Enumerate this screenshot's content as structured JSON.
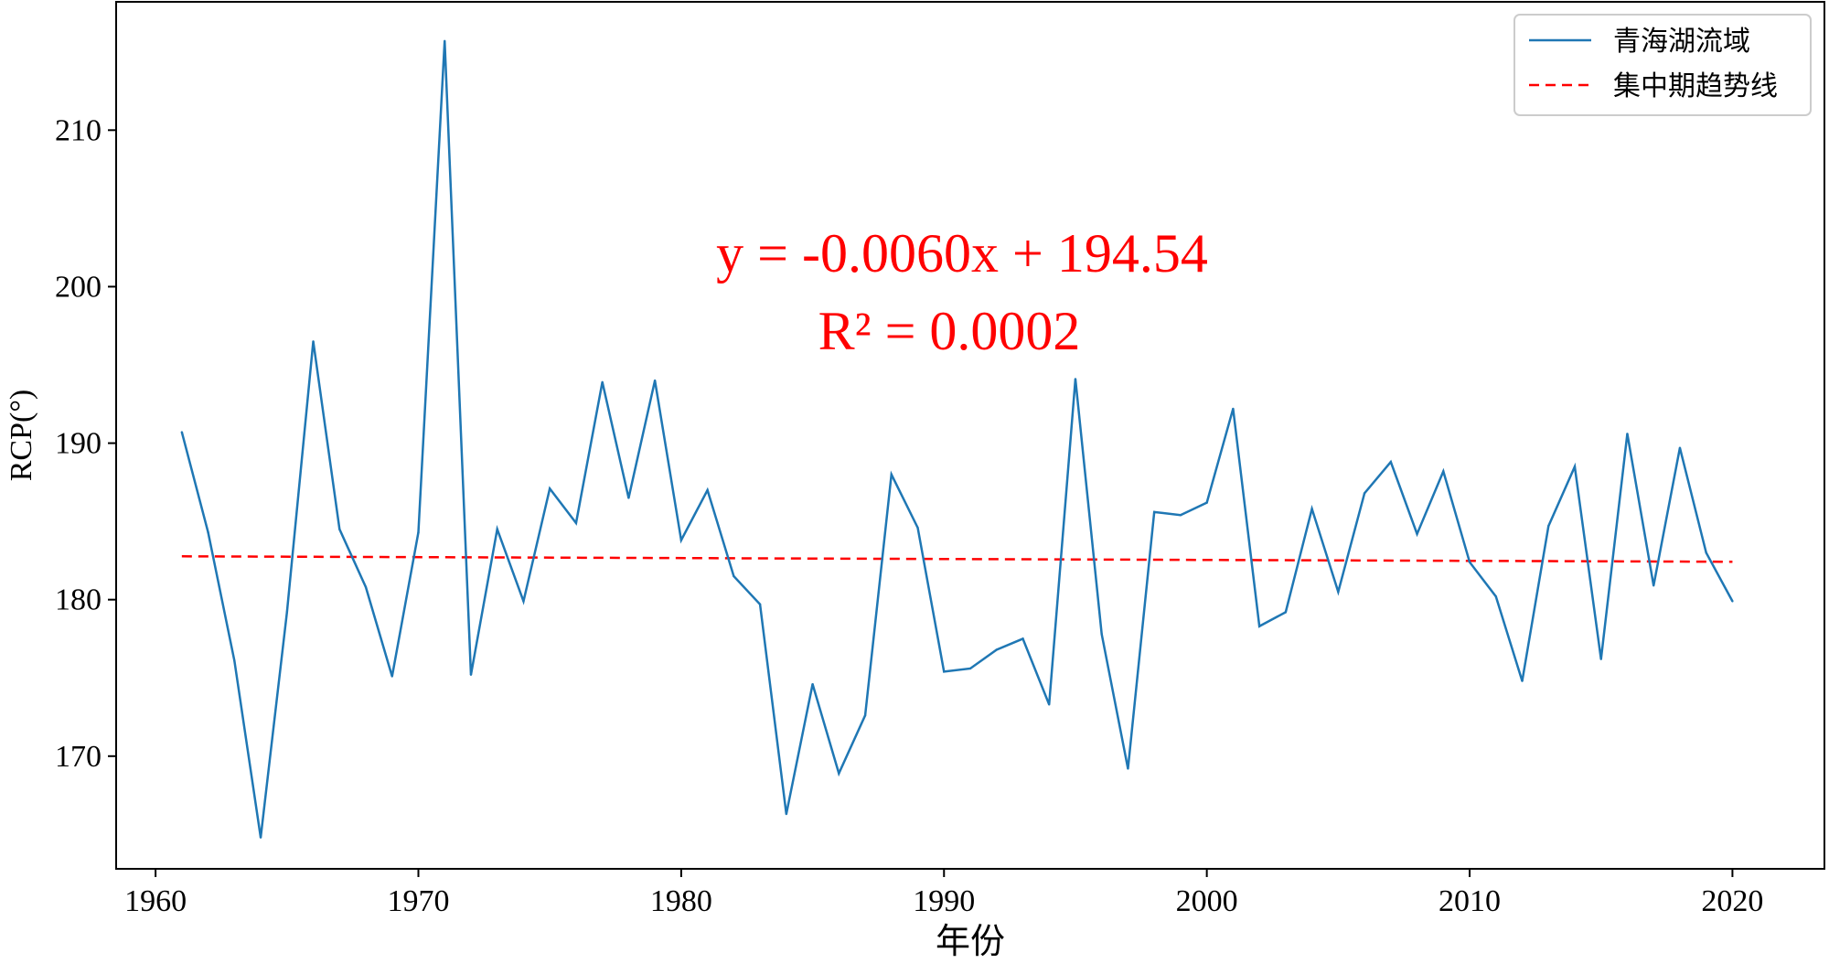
{
  "chart_data": {
    "type": "line",
    "xlabel": "年份",
    "ylabel": "RCP(°)",
    "xlim": [
      1958.5,
      2023.5
    ],
    "ylim": [
      162.8,
      218.2
    ],
    "xticks": [
      1960,
      1970,
      1980,
      1990,
      2000,
      2010,
      2020
    ],
    "yticks": [
      170,
      180,
      190,
      200,
      210
    ],
    "grid": false,
    "legend_position": "top-right",
    "series": [
      {
        "name": "青海湖流域",
        "color": "#1f77b4",
        "style": "solid",
        "x": [
          1961,
          1962,
          1963,
          1964,
          1965,
          1966,
          1967,
          1968,
          1969,
          1970,
          1971,
          1972,
          1973,
          1974,
          1975,
          1976,
          1977,
          1978,
          1979,
          1980,
          1981,
          1982,
          1983,
          1984,
          1985,
          1986,
          1987,
          1988,
          1989,
          1990,
          1991,
          1992,
          1993,
          1994,
          1995,
          1996,
          1997,
          1998,
          1999,
          2000,
          2001,
          2002,
          2003,
          2004,
          2005,
          2006,
          2007,
          2008,
          2009,
          2010,
          2011,
          2012,
          2013,
          2014,
          2015,
          2016,
          2017,
          2018,
          2019,
          2020
        ],
        "y": [
          190.7,
          184.3,
          176.1,
          164.8,
          179.2,
          196.5,
          184.5,
          180.8,
          175.1,
          184.3,
          215.7,
          175.2,
          184.5,
          179.9,
          187.1,
          184.9,
          193.9,
          186.5,
          194.0,
          183.8,
          187.0,
          181.5,
          179.7,
          166.3,
          174.6,
          168.9,
          172.6,
          188.0,
          184.6,
          175.4,
          175.6,
          176.8,
          177.5,
          173.3,
          194.1,
          177.8,
          169.2,
          185.6,
          185.4,
          186.2,
          192.2,
          178.3,
          179.2,
          185.8,
          180.5,
          186.8,
          188.8,
          184.2,
          188.2,
          182.4,
          180.2,
          174.8,
          184.7,
          188.5,
          176.2,
          190.6,
          180.9,
          189.7,
          183.0,
          179.9
        ]
      },
      {
        "name": "集中期趋势线",
        "color": "#ff0000",
        "style": "dashed",
        "x": [
          1961,
          2020
        ],
        "y": [
          182.77,
          182.42
        ]
      }
    ],
    "annotations": [
      {
        "text": "y = -0.0060x + 194.54",
        "color": "#ff0000"
      },
      {
        "text": "R² = 0.0002",
        "color": "#ff0000"
      }
    ]
  }
}
